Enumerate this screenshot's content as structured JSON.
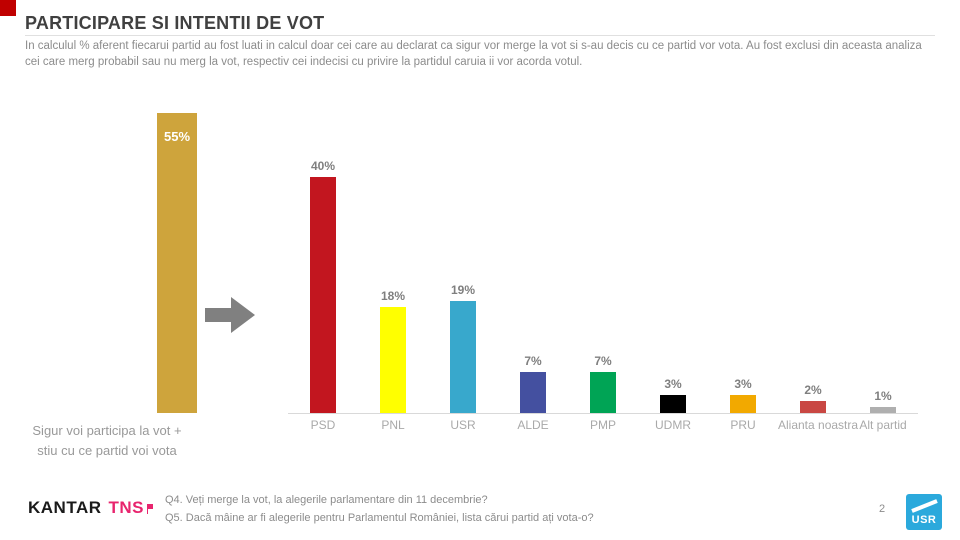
{
  "accent": {
    "red": "#c00000"
  },
  "header": {
    "title": "PARTICIPARE SI INTENTII DE VOT",
    "subtitle": "In calculul % aferent fiecarui partid au fost luati in calcul doar cei care au declarat ca sigur vor merge la vot si s-au decis cu ce partid vor vota. Au fost exclusi din aceasta analiza cei care merg probabil sau nu merg la vot, respectiv cei indecisi cu privire la partidul caruia ii vor acorda votul."
  },
  "chart_data": {
    "type": "bar",
    "title": "PARTICIPARE SI INTENTII DE VOT",
    "grid": false,
    "ylim": [
      0,
      55
    ],
    "participation": {
      "value": 55,
      "value_label": "55%",
      "color": "#CEA43C",
      "caption_line1": "Sigur voi participa la vot +",
      "caption_line2": "stiu cu ce partid voi vota"
    },
    "categories": [
      "PSD",
      "PNL",
      "USR",
      "ALDE",
      "PMP",
      "UDMR",
      "PRU",
      "Alianta noastra",
      "Alt partid"
    ],
    "values": [
      40,
      18,
      19,
      7,
      7,
      3,
      3,
      2,
      1
    ],
    "value_labels": [
      "40%",
      "18%",
      "19%",
      "7%",
      "7%",
      "3%",
      "3%",
      "2%",
      "1%"
    ],
    "colors": [
      "#C2161F",
      "#FFFF00",
      "#38A8CC",
      "#4450A0",
      "#00A455",
      "#000000",
      "#F2A900",
      "#C94743",
      "#AFAFAF"
    ],
    "arrow_color": "#808080"
  },
  "footer": {
    "brand_kantar": "KANTAR",
    "brand_tns": "TNS",
    "tns_color": "#E8256E",
    "q4": "Q4. Veți merge la vot, la alegerile parlamentare din 11 decembrie?",
    "q5": "Q5. Dacă mâine ar fi alegerile pentru Parlamentul României, lista cărui partid ați vota-o?",
    "page_number": "2",
    "usr_logo_text": "USR",
    "usr_logo_color": "#2BA9DC"
  }
}
